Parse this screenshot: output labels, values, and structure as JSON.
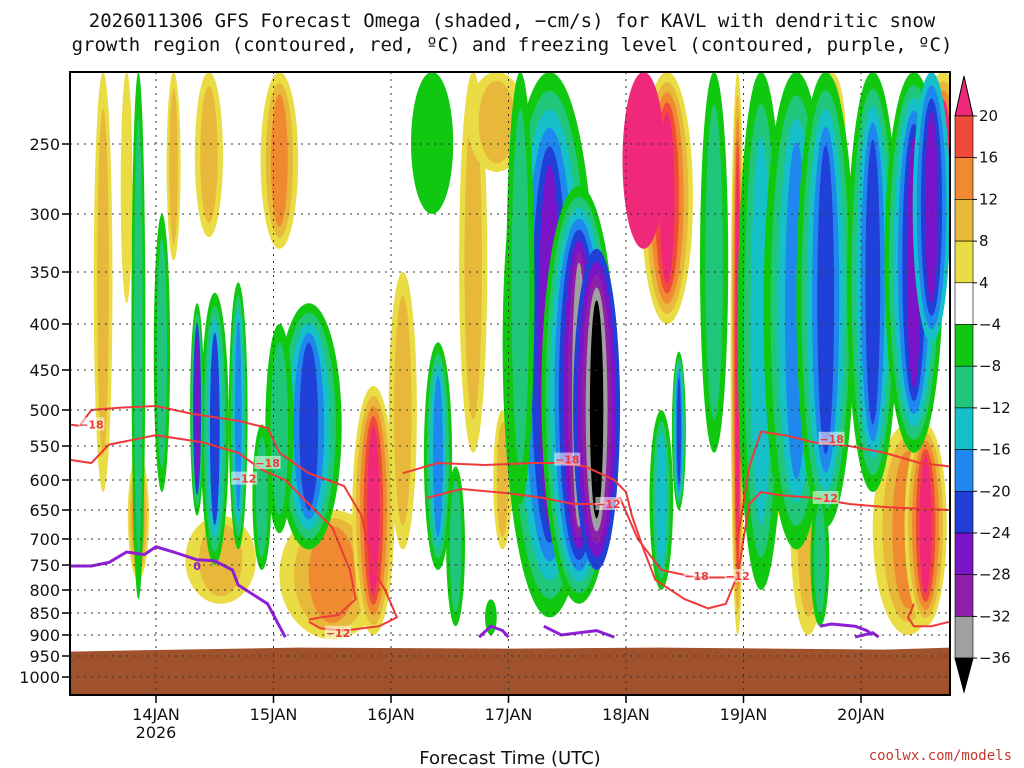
{
  "chart_data": {
    "type": "heatmap",
    "title_lines": [
      "2026011306 GFS Forecast Omega (shaded, −cm/s) for KAVL with dendritic snow",
      "growth region (contoured, red, ºC) and freezing level (contoured, purple, ºC)"
    ],
    "xlabel": "Forecast Time (UTC)",
    "credit": "coolwx.com/models",
    "y_ticks": [
      250,
      300,
      350,
      400,
      450,
      500,
      550,
      600,
      650,
      700,
      750,
      800,
      850,
      900,
      950,
      1000
    ],
    "x_ticks": [
      {
        "label": "14JAN",
        "sub": "2026",
        "day": 14
      },
      {
        "label": "15JAN",
        "sub": "",
        "day": 15
      },
      {
        "label": "16JAN",
        "sub": "",
        "day": 16
      },
      {
        "label": "17JAN",
        "sub": "",
        "day": 17
      },
      {
        "label": "18JAN",
        "sub": "",
        "day": 18
      },
      {
        "label": "19JAN",
        "sub": "",
        "day": 19
      },
      {
        "label": "20JAN",
        "sub": "",
        "day": 20
      }
    ],
    "colorbar": {
      "labels": [
        "20",
        "16",
        "12",
        "8",
        "4",
        "−4",
        "−8",
        "−12",
        "−16",
        "−20",
        "−24",
        "−28",
        "−32",
        "−36"
      ],
      "levels": [
        20,
        16,
        12,
        8,
        4,
        -4,
        -8,
        -12,
        -16,
        -20,
        -24,
        -28,
        -32,
        -36
      ],
      "colors": [
        "#f0287a",
        "#f04a3a",
        "#ef8a30",
        "#e8b83a",
        "#e9dc45",
        "#ffffff",
        "#11c811",
        "#20c77a",
        "#16c0c8",
        "#1e88ee",
        "#2040d8",
        "#7a14c8",
        "#8e1fa8",
        "#a0a0a0",
        "#000000"
      ]
    },
    "surface_color": "#a0522d",
    "dgz_labels": [
      {
        "text": "−18",
        "day": 13.45,
        "p": 520
      },
      {
        "text": "−18",
        "day": 14.95,
        "p": 575
      },
      {
        "text": "−12",
        "day": 14.75,
        "p": 598
      },
      {
        "text": "−12",
        "day": 15.55,
        "p": 895
      },
      {
        "text": "−18",
        "day": 17.5,
        "p": 570
      },
      {
        "text": "−12",
        "day": 17.85,
        "p": 640
      },
      {
        "text": "−18",
        "day": 18.6,
        "p": 772
      },
      {
        "text": "−12",
        "day": 18.95,
        "p": 772
      },
      {
        "text": "−18",
        "day": 19.75,
        "p": 540
      },
      {
        "text": "−12",
        "day": 19.7,
        "p": 630
      }
    ],
    "freeze_labels": [
      {
        "text": "0",
        "day": 14.35,
        "p": 752
      }
    ]
  }
}
